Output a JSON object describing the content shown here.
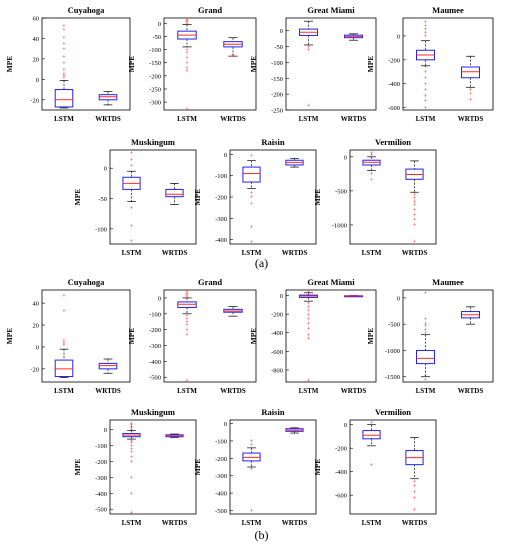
{
  "figure": {
    "panel_a_label": "(a)",
    "panel_b_label": "(b)",
    "colors": {
      "box": "#2222ee",
      "median": "#ff2a2a",
      "outlier": "#ff0000",
      "whisker": "#000000"
    }
  },
  "chart_data": [
    {
      "panel": "a",
      "type": "box",
      "title": "Cuyahoga",
      "ylabel": "MPE",
      "categories": [
        "LSTM",
        "WRTDS"
      ],
      "ylim": [
        -30,
        60
      ],
      "yticks": [
        -20,
        0,
        20,
        40,
        60
      ],
      "boxes": [
        {
          "q1": -27,
          "median": -20,
          "q3": -10,
          "whislo": -28,
          "whishi": -1,
          "outliers": [
            2,
            4,
            6,
            10,
            16,
            22,
            30,
            35,
            41,
            49,
            53
          ]
        },
        {
          "q1": -20,
          "median": -17,
          "q3": -15,
          "whislo": -25,
          "whishi": -12,
          "outliers": []
        }
      ]
    },
    {
      "panel": "a",
      "type": "box",
      "title": "Grand",
      "ylabel": "MPE",
      "categories": [
        "LSTM",
        "WRTDS"
      ],
      "ylim": [
        -330,
        20
      ],
      "yticks": [
        0,
        -50,
        -100,
        -150,
        -200,
        -250,
        -300
      ],
      "boxes": [
        {
          "q1": -60,
          "median": -45,
          "q3": -30,
          "whislo": -90,
          "whishi": -5,
          "outliers": [
            0,
            5,
            10,
            15,
            -100,
            -110,
            -130,
            -150,
            -170,
            -180,
            -325
          ]
        },
        {
          "q1": -90,
          "median": -80,
          "q3": -70,
          "whislo": -125,
          "whishi": -55,
          "outliers": [
            -120,
            -125
          ]
        }
      ]
    },
    {
      "panel": "a",
      "type": "box",
      "title": "Great Miami",
      "ylabel": "MPE",
      "categories": [
        "LSTM",
        "WRTDS"
      ],
      "ylim": [
        -250,
        40
      ],
      "yticks": [
        0,
        -50,
        -100,
        -150,
        -200,
        -250
      ],
      "boxes": [
        {
          "q1": -15,
          "median": -5,
          "q3": 5,
          "whislo": -45,
          "whishi": 30,
          "outliers": [
            -50,
            -60,
            -235
          ]
        },
        {
          "q1": -22,
          "median": -18,
          "q3": -14,
          "whislo": -30,
          "whishi": -10,
          "outliers": []
        }
      ]
    },
    {
      "panel": "a",
      "type": "box",
      "title": "Maumee",
      "ylabel": "MPE",
      "categories": [
        "LSTM",
        "WRTDS"
      ],
      "ylim": [
        -620,
        150
      ],
      "yticks": [
        0,
        -200,
        -400,
        -600
      ],
      "boxes": [
        {
          "q1": -200,
          "median": -160,
          "q3": -120,
          "whislo": -250,
          "whishi": -40,
          "outliers": [
            0,
            30,
            60,
            90,
            120,
            -260,
            -300,
            -350,
            -400,
            -450,
            -500,
            -540,
            -600
          ]
        },
        {
          "q1": -350,
          "median": -300,
          "q3": -260,
          "whislo": -430,
          "whishi": -170,
          "outliers": [
            -450,
            -480,
            -530
          ]
        }
      ]
    },
    {
      "panel": "a",
      "type": "box",
      "title": "Muskingum",
      "ylabel": "MPE",
      "categories": [
        "LSTM",
        "WRTDS"
      ],
      "ylim": [
        -125,
        30
      ],
      "yticks": [
        0,
        -50,
        -100
      ],
      "boxes": [
        {
          "q1": -35,
          "median": -25,
          "q3": -15,
          "whislo": -55,
          "whishi": -5,
          "outliers": [
            5,
            15,
            25,
            -65,
            -95,
            -120
          ]
        },
        {
          "q1": -47,
          "median": -43,
          "q3": -35,
          "whislo": -60,
          "whishi": -25,
          "outliers": []
        }
      ]
    },
    {
      "panel": "a",
      "type": "box",
      "title": "Raisin",
      "ylabel": "MPE",
      "categories": [
        "LSTM",
        "WRTDS"
      ],
      "ylim": [
        -420,
        20
      ],
      "yticks": [
        0,
        -100,
        -200,
        -300,
        -400
      ],
      "boxes": [
        {
          "q1": -130,
          "median": -90,
          "q3": -60,
          "whislo": -160,
          "whishi": -30,
          "outliers": [
            -5,
            -180,
            -200,
            -230,
            -340,
            -410
          ]
        },
        {
          "q1": -50,
          "median": -38,
          "q3": -28,
          "whislo": -60,
          "whishi": -20,
          "outliers": []
        }
      ]
    },
    {
      "panel": "a",
      "type": "box",
      "title": "Vermilion",
      "ylabel": "MPE",
      "categories": [
        "LSTM",
        "WRTDS"
      ],
      "ylim": [
        -1280,
        100
      ],
      "yticks": [
        0,
        -500,
        -1000
      ],
      "boxes": [
        {
          "q1": -120,
          "median": -80,
          "q3": -50,
          "whislo": -200,
          "whishi": 0,
          "outliers": [
            30,
            60,
            -250,
            -330
          ]
        },
        {
          "q1": -330,
          "median": -260,
          "q3": -180,
          "whislo": -520,
          "whishi": -60,
          "outliers": [
            -550,
            -600,
            -650,
            -700,
            -780,
            -850,
            -920,
            -1000,
            -1240
          ]
        }
      ]
    },
    {
      "panel": "b",
      "type": "box",
      "title": "Cuyahoga",
      "ylabel": "MPE",
      "categories": [
        "LSTM",
        "WRTDS"
      ],
      "ylim": [
        -32,
        52
      ],
      "yticks": [
        -20,
        0,
        20,
        40
      ],
      "boxes": [
        {
          "q1": -27,
          "median": -20,
          "q3": -12,
          "whislo": -28,
          "whishi": -2,
          "outliers": [
            2,
            4,
            6,
            33,
            47
          ]
        },
        {
          "q1": -20,
          "median": -17,
          "q3": -15,
          "whislo": -24,
          "whishi": -11,
          "outliers": []
        }
      ]
    },
    {
      "panel": "b",
      "type": "box",
      "title": "Grand",
      "ylabel": "MPE",
      "categories": [
        "LSTM",
        "WRTDS"
      ],
      "ylim": [
        -530,
        50
      ],
      "yticks": [
        0,
        -100,
        -200,
        -300,
        -400,
        -500
      ],
      "boxes": [
        {
          "q1": -60,
          "median": -40,
          "q3": -25,
          "whislo": -100,
          "whishi": 0,
          "outliers": [
            10,
            20,
            30,
            40,
            -110,
            -130,
            -150,
            -170,
            -200,
            -230,
            -520
          ]
        },
        {
          "q1": -90,
          "median": -82,
          "q3": -72,
          "whislo": -115,
          "whishi": -55,
          "outliers": []
        }
      ]
    },
    {
      "panel": "b",
      "type": "box",
      "title": "Great Miami",
      "ylabel": "MPE",
      "categories": [
        "LSTM",
        "WRTDS"
      ],
      "ylim": [
        -930,
        60
      ],
      "yticks": [
        0,
        -200,
        -400,
        -600,
        -800
      ],
      "boxes": [
        {
          "q1": -20,
          "median": -5,
          "q3": 5,
          "whislo": -60,
          "whishi": 30,
          "outliers": [
            40,
            -80,
            -120,
            -160,
            -200,
            -250,
            -300,
            -350,
            -420,
            -460,
            -910
          ]
        },
        {
          "q1": -8,
          "median": -5,
          "q3": -2,
          "whislo": -12,
          "whishi": 0,
          "outliers": []
        }
      ]
    },
    {
      "panel": "b",
      "type": "box",
      "title": "Maumee",
      "ylabel": "MPE",
      "categories": [
        "LSTM",
        "WRTDS"
      ],
      "ylim": [
        -1600,
        150
      ],
      "yticks": [
        0,
        -500,
        -1000,
        -1500
      ],
      "boxes": [
        {
          "q1": -1250,
          "median": -1150,
          "q3": -1000,
          "whislo": -1500,
          "whishi": -700,
          "outliers": [
            100,
            -400,
            -480,
            -530,
            -600,
            -650,
            -1550
          ]
        },
        {
          "q1": -380,
          "median": -320,
          "q3": -260,
          "whislo": -500,
          "whishi": -170,
          "outliers": []
        }
      ]
    },
    {
      "panel": "b",
      "type": "box",
      "title": "Muskingum",
      "ylabel": "MPE",
      "categories": [
        "LSTM",
        "WRTDS"
      ],
      "ylim": [
        -530,
        60
      ],
      "yticks": [
        0,
        -100,
        -200,
        -300,
        -400,
        -500
      ],
      "boxes": [
        {
          "q1": -45,
          "median": -35,
          "q3": -25,
          "whislo": -60,
          "whishi": -5,
          "outliers": [
            0,
            10,
            20,
            30,
            40,
            -70,
            -80,
            -100,
            -120,
            -140,
            -170,
            -200,
            -300,
            -400,
            -520
          ]
        },
        {
          "q1": -45,
          "median": -40,
          "q3": -33,
          "whislo": -50,
          "whishi": -28,
          "outliers": []
        }
      ]
    },
    {
      "panel": "b",
      "type": "box",
      "title": "Raisin",
      "ylabel": "MPE",
      "categories": [
        "LSTM",
        "WRTDS"
      ],
      "ylim": [
        -520,
        20
      ],
      "yticks": [
        0,
        -100,
        -200,
        -300,
        -400,
        -500
      ],
      "boxes": [
        {
          "q1": -215,
          "median": -195,
          "q3": -170,
          "whislo": -250,
          "whishi": -140,
          "outliers": [
            -100,
            -120,
            -260,
            -500
          ]
        },
        {
          "q1": -45,
          "median": -38,
          "q3": -30,
          "whislo": -55,
          "whishi": -25,
          "outliers": []
        }
      ]
    },
    {
      "panel": "b",
      "type": "box",
      "title": "Vermilion",
      "ylabel": "MPE",
      "categories": [
        "LSTM",
        "WRTDS"
      ],
      "ylim": [
        -760,
        40
      ],
      "yticks": [
        0,
        -200,
        -400,
        -600
      ],
      "boxes": [
        {
          "q1": -120,
          "median": -90,
          "q3": -50,
          "whislo": -180,
          "whishi": 0,
          "outliers": [
            20,
            -340
          ]
        },
        {
          "q1": -340,
          "median": -280,
          "q3": -220,
          "whislo": -460,
          "whishi": -110,
          "outliers": [
            -480,
            -520,
            -570,
            -620,
            -720
          ]
        }
      ]
    }
  ]
}
